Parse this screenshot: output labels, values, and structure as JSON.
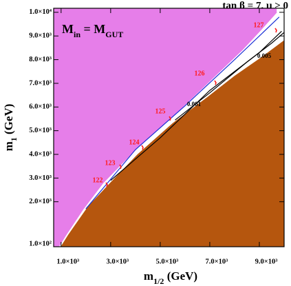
{
  "chart_data": {
    "type": "region",
    "title": "tan β = 7, μ > 0",
    "inset_label": [
      "M",
      "in",
      " = M",
      "GUT"
    ],
    "xlabel": [
      "m",
      "1/2",
      " (GeV)"
    ],
    "ylabel": [
      "m",
      "1",
      " (GeV)"
    ],
    "xlim": [
      700,
      10000
    ],
    "ylim": [
      100,
      10170
    ],
    "xticks": [
      {
        "value": 1000,
        "label": "1.0×10³"
      },
      {
        "value": 3000,
        "label": "3.0×10³"
      },
      {
        "value": 5000,
        "label": "5.0×10³"
      },
      {
        "value": 7000,
        "label": "7.0×10³"
      },
      {
        "value": 9000,
        "label": "9.0×10³"
      }
    ],
    "yticks": [
      {
        "value": 100,
        "label": "1.0×10²"
      },
      {
        "value": 2000,
        "label": "2.0×10³"
      },
      {
        "value": 3000,
        "label": "3.0×10³"
      },
      {
        "value": 4000,
        "label": "4.0×10³"
      },
      {
        "value": 5000,
        "label": "5.0×10³"
      },
      {
        "value": 6000,
        "label": "6.0×10³"
      },
      {
        "value": 7000,
        "label": "7.0×10³"
      },
      {
        "value": 8000,
        "label": "8.0×10³"
      },
      {
        "value": 9000,
        "label": "9.0×10³"
      },
      {
        "value": 10000,
        "label": "1.0×10⁴"
      }
    ],
    "regions": [
      {
        "color": "#e67ee9",
        "x": [
          900,
          1200,
          1900,
          2700,
          4100,
          5500,
          6900,
          8300,
          9100,
          9700
        ],
        "y": [
          100,
          600,
          1700,
          2800,
          4300,
          5600,
          7000,
          8400,
          9300,
          10000
        ]
      },
      {
        "color": "#b5560e",
        "x": [
          1000,
          1300,
          2100,
          3000,
          4100,
          5500,
          6900,
          8000,
          9100,
          10000
        ],
        "y": [
          100,
          600,
          1800,
          2800,
          4000,
          5300,
          6400,
          7300,
          8100,
          8800
        ]
      }
    ],
    "contours": [
      {
        "color": "#1a2fd6",
        "x": [
          2000,
          4000,
          6000,
          8000,
          9800
        ],
        "y": [
          1700,
          4200,
          6050,
          8000,
          9800
        ]
      },
      {
        "name": "0.001",
        "color": "#000000",
        "x": [
          3000,
          5000,
          7000,
          9000,
          9900
        ],
        "y": [
          2900,
          4700,
          6700,
          8300,
          9200
        ]
      },
      {
        "name": "0.005",
        "color": "#000000",
        "x": [
          5600,
          7000,
          8500,
          9500,
          10000
        ],
        "y": [
          5450,
          6600,
          7900,
          8700,
          9150
        ]
      }
    ],
    "higgs_mass_labels": [
      122,
      123,
      124,
      125,
      126,
      127
    ]
  }
}
